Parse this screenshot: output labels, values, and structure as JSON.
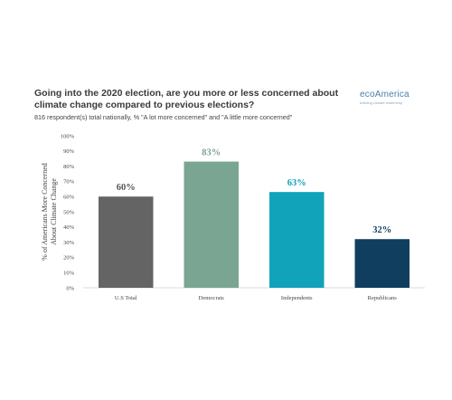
{
  "logo": {
    "name": "ecoAmerica",
    "tagline": "building climate leadership"
  },
  "chart_data": {
    "type": "bar",
    "title": "Going into the 2020 election, are you more or less concerned about climate change compared to previous elections?",
    "subtitle": "816 respondent(s) total nationally, % \"A lot more concerned\" and \"A little more concerned\"",
    "ylabel": "% of Americans More Concerned About Climate Change",
    "xlabel": "",
    "categories": [
      "U.S Total",
      "Democrats",
      "Independents",
      "Republicans"
    ],
    "values": [
      60,
      83,
      63,
      32
    ],
    "value_labels": [
      "60%",
      "83%",
      "63%",
      "32%"
    ],
    "colors": [
      "#646464",
      "#7aa593",
      "#10a3b9",
      "#0f3e5e"
    ],
    "label_colors": [
      "#555555",
      "#7aa593",
      "#10a3b9",
      "#0f3e5e"
    ],
    "ylim": [
      0,
      100
    ],
    "yticks": [
      0,
      10,
      20,
      30,
      40,
      50,
      60,
      70,
      80,
      90,
      100
    ],
    "ytick_labels": [
      "0%",
      "10%",
      "20%",
      "30%",
      "40%",
      "50%",
      "60%",
      "70%",
      "80%",
      "90%",
      "100%"
    ],
    "grid": false,
    "legend": "none"
  }
}
